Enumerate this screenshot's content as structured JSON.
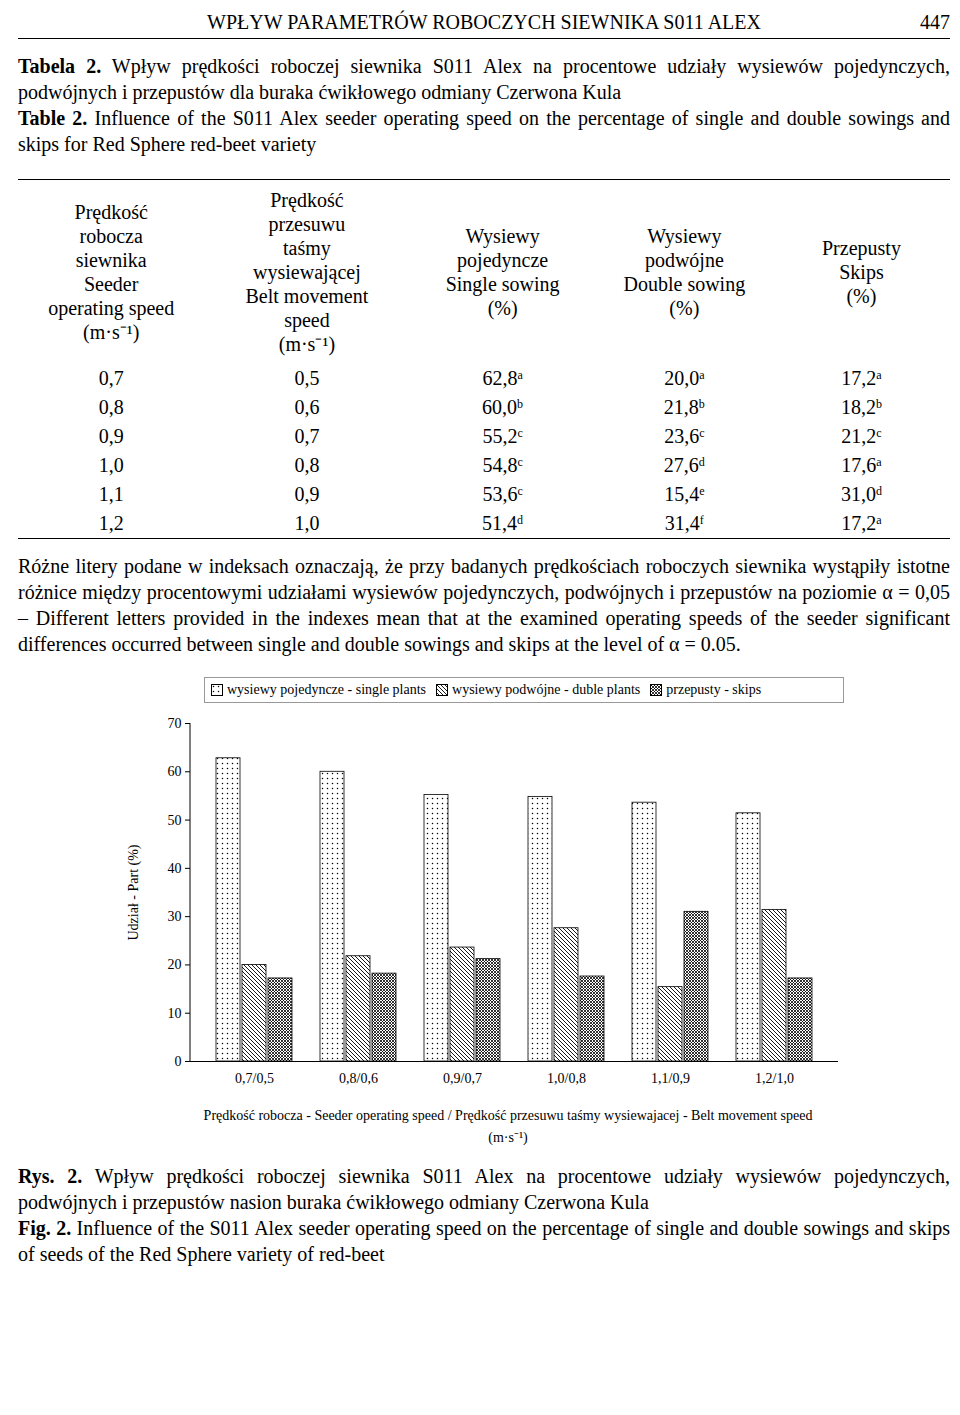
{
  "header": {
    "title": "WPŁYW PARAMETRÓW ROBOCZYCH SIEWNIKA S011 ALEX",
    "page": "447"
  },
  "table_caption": {
    "label_pl": "Tabela 2.",
    "text_pl": "Wpływ prędkości roboczej siewnika S011 Alex na procentowe udziały wysiewów pojedynczych, podwójnych i przepustów dla buraka ćwikłowego odmiany Czerwona Kula",
    "label_en": "Table 2.",
    "text_en": "Influence of the S011 Alex seeder operating speed on the percentage of single and double sowings and skips for Red Sphere red-beet variety"
  },
  "table": {
    "columns": [
      [
        "Prędkość",
        "robocza",
        "siewnika",
        "Seeder",
        "operating speed",
        "(m·s⁻¹)"
      ],
      [
        "Prędkość",
        "przesuwu",
        "taśmy",
        "wysiewającej",
        "Belt movement",
        "speed",
        "(m·s⁻¹)"
      ],
      [
        "Wysiewy",
        "pojedyncze",
        "Single sowing",
        "(%)"
      ],
      [
        "Wysiewy",
        "podwójne",
        "Double sowing",
        "(%)"
      ],
      [
        "Przepusty",
        "Skips",
        "(%)"
      ]
    ],
    "rows": [
      [
        {
          "text": "0,7"
        },
        {
          "text": "0,5"
        },
        {
          "text": "62,8",
          "sup": "a"
        },
        {
          "text": "20,0",
          "sup": "a"
        },
        {
          "text": "17,2",
          "sup": "a"
        }
      ],
      [
        {
          "text": "0,8"
        },
        {
          "text": "0,6"
        },
        {
          "text": "60,0",
          "sup": "b"
        },
        {
          "text": "21,8",
          "sup": "b"
        },
        {
          "text": "18,2",
          "sup": "b"
        }
      ],
      [
        {
          "text": "0,9"
        },
        {
          "text": "0,7"
        },
        {
          "text": "55,2",
          "sup": "c"
        },
        {
          "text": "23,6",
          "sup": "c"
        },
        {
          "text": "21,2",
          "sup": "c"
        }
      ],
      [
        {
          "text": "1,0"
        },
        {
          "text": "0,8"
        },
        {
          "text": "54,8",
          "sup": "c"
        },
        {
          "text": "27,6",
          "sup": "d"
        },
        {
          "text": "17,6",
          "sup": "a"
        }
      ],
      [
        {
          "text": "1,1"
        },
        {
          "text": "0,9"
        },
        {
          "text": "53,6",
          "sup": "c"
        },
        {
          "text": "15,4",
          "sup": "e"
        },
        {
          "text": "31,0",
          "sup": "d"
        }
      ],
      [
        {
          "text": "1,2"
        },
        {
          "text": "1,0"
        },
        {
          "text": "51,4",
          "sup": "d"
        },
        {
          "text": "31,4",
          "sup": "f"
        },
        {
          "text": "17,2",
          "sup": "a"
        }
      ]
    ]
  },
  "table_note": "Różne litery podane w indeksach oznaczają, że przy badanych prędkościach roboczych siewnika wystąpiły istotne różnice między procentowymi udziałami wysiewów pojedynczych, podwójnych i przepustów na poziomie α = 0,05 – Different letters provided in the indexes mean that at the examined operating speeds of the seeder significant differences occurred between single and double sowings and skips at the level of α = 0.05.",
  "chart_data": {
    "type": "bar",
    "categories": [
      "0,7/0,5",
      "0,8/0,6",
      "0,9/0,7",
      "1,0/0,8",
      "1,1/0,9",
      "1,2/1,0"
    ],
    "series": [
      {
        "name": "wysiewy pojedyncze - single plants",
        "color": "#000000",
        "values": [
          62.8,
          60.0,
          55.2,
          54.8,
          53.6,
          51.4
        ]
      },
      {
        "name": "wysiewy podwójne - duble plants",
        "color": "#000000",
        "values": [
          20.0,
          21.8,
          23.6,
          27.6,
          15.4,
          31.4
        ]
      },
      {
        "name": "przepusty - skips",
        "color": "#000000",
        "values": [
          17.2,
          18.2,
          21.2,
          17.6,
          31.0,
          17.2
        ]
      }
    ],
    "y_label": "Udział - Part (%)",
    "x_label": "Prędkość robocza - Seeder operating speed / Prędkość przesuwu taśmy wysiewajacej - Belt movement speed (m·s⁻¹)",
    "ylim": [
      0,
      70
    ],
    "yticks": [
      0,
      10,
      20,
      30,
      40,
      50,
      60,
      70
    ],
    "grid": false,
    "legend": "top"
  },
  "figure_caption": {
    "label_pl": "Rys. 2.",
    "text_pl": "Wpływ prędkości roboczej siewnika S011 Alex na procentowe udziały wysiewów pojedynczych, podwójnych i przepustów nasion buraka ćwikłowego odmiany Czerwona Kula",
    "label_en": "Fig. 2.",
    "text_en": "Influence of the S011 Alex seeder operating speed on the percentage of single and double sowings and skips of seeds of the Red Sphere variety of red-beet"
  }
}
